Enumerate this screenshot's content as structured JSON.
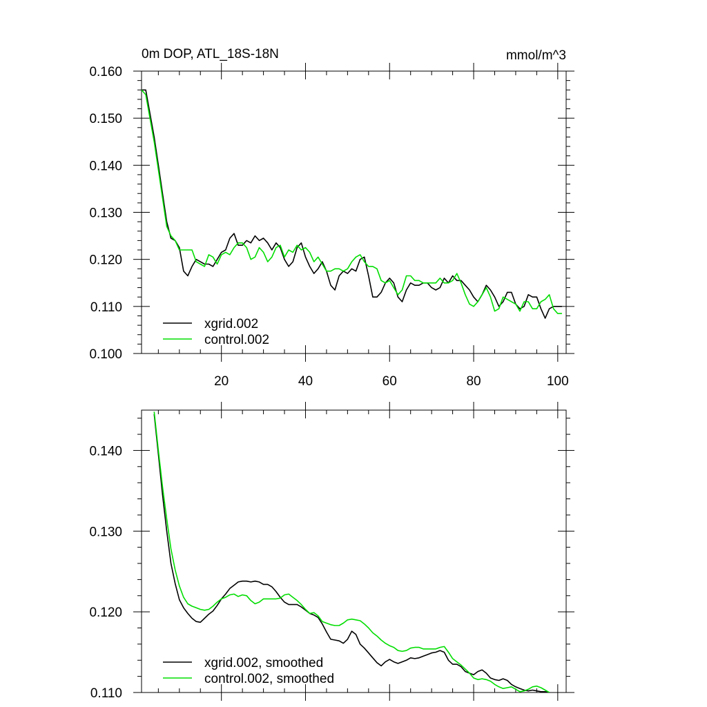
{
  "chart_data": [
    {
      "type": "line",
      "title": "0m DOP, ATL_18S-18N",
      "units": "mmol/m^3",
      "xlabel": "",
      "ylabel": "",
      "xlim": [
        1,
        102
      ],
      "ylim": [
        0.1,
        0.16
      ],
      "x_ticks": [
        "20",
        "40",
        "60",
        "80",
        "100"
      ],
      "y_ticks": [
        "0.100",
        "0.110",
        "0.120",
        "0.130",
        "0.140",
        "0.150",
        "0.160"
      ],
      "legend": {
        "position": "bottom-left",
        "entries": [
          "xgrid.002",
          "control.002"
        ]
      },
      "x": [
        1,
        2,
        3,
        4,
        5,
        6,
        7,
        8,
        9,
        10,
        11,
        12,
        13,
        14,
        15,
        16,
        17,
        18,
        19,
        20,
        21,
        22,
        23,
        24,
        25,
        26,
        27,
        28,
        29,
        30,
        31,
        32,
        33,
        34,
        35,
        36,
        37,
        38,
        39,
        40,
        41,
        42,
        43,
        44,
        45,
        46,
        47,
        48,
        49,
        50,
        51,
        52,
        53,
        54,
        55,
        56,
        57,
        58,
        59,
        60,
        61,
        62,
        63,
        64,
        65,
        66,
        67,
        68,
        69,
        70,
        71,
        72,
        73,
        74,
        75,
        76,
        77,
        78,
        79,
        80,
        81,
        82,
        83,
        84,
        85,
        86,
        87,
        88,
        89,
        90,
        91,
        92,
        93,
        94,
        95,
        96,
        97,
        98,
        99,
        100,
        101
      ],
      "series": [
        {
          "name": "xgrid.002",
          "color": "#000000",
          "values": [
            0.156,
            0.156,
            0.151,
            0.146,
            0.14,
            0.134,
            0.128,
            0.1245,
            0.124,
            0.1225,
            0.1175,
            0.1165,
            0.1185,
            0.12,
            0.1195,
            0.119,
            0.119,
            0.1185,
            0.12,
            0.1215,
            0.122,
            0.1245,
            0.1255,
            0.123,
            0.123,
            0.124,
            0.1235,
            0.125,
            0.124,
            0.1245,
            0.1235,
            0.122,
            0.1235,
            0.1225,
            0.12,
            0.1185,
            0.1195,
            0.1225,
            0.1235,
            0.1205,
            0.1185,
            0.117,
            0.118,
            0.1195,
            0.1175,
            0.1145,
            0.1135,
            0.1165,
            0.1175,
            0.117,
            0.118,
            0.1175,
            0.12,
            0.1205,
            0.1165,
            0.112,
            0.112,
            0.113,
            0.115,
            0.116,
            0.115,
            0.112,
            0.111,
            0.1135,
            0.115,
            0.1145,
            0.1145,
            0.115,
            0.115,
            0.114,
            0.1135,
            0.114,
            0.116,
            0.115,
            0.1165,
            0.1155,
            0.1155,
            0.1145,
            0.1135,
            0.112,
            0.111,
            0.1125,
            0.1145,
            0.1135,
            0.112,
            0.11,
            0.111,
            0.113,
            0.113,
            0.1105,
            0.1095,
            0.11,
            0.1125,
            0.112,
            0.112,
            0.1095,
            0.1075,
            0.1095,
            0.11,
            0.11,
            0.11
          ]
        },
        {
          "name": "control.002",
          "color": "#00dd00",
          "values": [
            0.156,
            0.155,
            0.15,
            0.145,
            0.139,
            0.133,
            0.127,
            0.125,
            0.124,
            0.122,
            0.122,
            0.122,
            0.122,
            0.1195,
            0.119,
            0.1185,
            0.121,
            0.1205,
            0.119,
            0.121,
            0.1215,
            0.121,
            0.1225,
            0.1235,
            0.1235,
            0.1225,
            0.12,
            0.1205,
            0.1225,
            0.1215,
            0.1195,
            0.1205,
            0.1225,
            0.123,
            0.1205,
            0.122,
            0.1215,
            0.123,
            0.122,
            0.1225,
            0.1215,
            0.1195,
            0.1205,
            0.119,
            0.1175,
            0.1175,
            0.118,
            0.118,
            0.1175,
            0.118,
            0.1195,
            0.1205,
            0.121,
            0.1195,
            0.1185,
            0.1185,
            0.118,
            0.1155,
            0.115,
            0.1155,
            0.114,
            0.1125,
            0.1135,
            0.1165,
            0.1165,
            0.1155,
            0.1155,
            0.115,
            0.115,
            0.115,
            0.115,
            0.116,
            0.115,
            0.115,
            0.1155,
            0.117,
            0.115,
            0.1125,
            0.1105,
            0.11,
            0.111,
            0.1125,
            0.114,
            0.112,
            0.109,
            0.1095,
            0.112,
            0.1115,
            0.111,
            0.1105,
            0.109,
            0.111,
            0.111,
            0.1095,
            0.1095,
            0.111,
            0.1115,
            0.1125,
            0.1095,
            0.1085,
            0.1085
          ]
        }
      ]
    },
    {
      "type": "line",
      "title": "",
      "xlabel": "",
      "ylabel": "",
      "xlim": [
        1,
        102
      ],
      "ylim": [
        0.11,
        0.145
      ],
      "x_ticks": [],
      "y_ticks": [
        "0.110",
        "0.120",
        "0.130",
        "0.140"
      ],
      "legend": {
        "position": "bottom-left",
        "entries": [
          "xgrid.002, smoothed",
          "control.002, smoothed"
        ]
      },
      "x": [
        4,
        5,
        6,
        7,
        8,
        9,
        10,
        11,
        12,
        13,
        14,
        15,
        16,
        17,
        18,
        19,
        20,
        21,
        22,
        23,
        24,
        25,
        26,
        27,
        28,
        29,
        30,
        31,
        32,
        33,
        34,
        35,
        36,
        37,
        38,
        39,
        40,
        41,
        42,
        43,
        44,
        45,
        46,
        47,
        48,
        49,
        50,
        51,
        52,
        53,
        54,
        55,
        56,
        57,
        58,
        59,
        60,
        61,
        62,
        63,
        64,
        65,
        66,
        67,
        68,
        69,
        70,
        71,
        72,
        73,
        74,
        75,
        76,
        77,
        78,
        79,
        80,
        81,
        82,
        83,
        84,
        85,
        86,
        87,
        88,
        89,
        90,
        91,
        92,
        93,
        94,
        95,
        96,
        97,
        98
      ],
      "series": [
        {
          "name": "xgrid.002, smoothed",
          "color": "#000000",
          "values": [
            0.1445,
            0.1395,
            0.1345,
            0.13,
            0.126,
            0.1235,
            0.1215,
            0.1205,
            0.1198,
            0.1192,
            0.1188,
            0.1187,
            0.1192,
            0.1197,
            0.1201,
            0.1208,
            0.1216,
            0.1222,
            0.1229,
            0.1233,
            0.1237,
            0.1238,
            0.1238,
            0.1237,
            0.1238,
            0.1237,
            0.1234,
            0.1234,
            0.1231,
            0.1225,
            0.1218,
            0.1212,
            0.1209,
            0.1209,
            0.1209,
            0.1206,
            0.1202,
            0.1198,
            0.1196,
            0.1193,
            0.1185,
            0.1175,
            0.1166,
            0.1165,
            0.1164,
            0.1161,
            0.1166,
            0.1176,
            0.1172,
            0.116,
            0.1155,
            0.1149,
            0.1143,
            0.1137,
            0.1133,
            0.1138,
            0.1141,
            0.1138,
            0.1136,
            0.1138,
            0.114,
            0.1143,
            0.1142,
            0.1143,
            0.1145,
            0.1147,
            0.1149,
            0.115,
            0.1152,
            0.115,
            0.114,
            0.1135,
            0.1135,
            0.1132,
            0.1126,
            0.1124,
            0.1122,
            0.1126,
            0.1128,
            0.1124,
            0.1118,
            0.1116,
            0.1115,
            0.1117,
            0.1115,
            0.111,
            0.1107,
            0.1105,
            0.1103,
            0.1102,
            0.1103,
            0.1102,
            0.1101,
            0.1101,
            0.11
          ]
        },
        {
          "name": "control.002, smoothed",
          "color": "#00dd00",
          "values": [
            0.1448,
            0.14,
            0.1355,
            0.1315,
            0.1278,
            0.1252,
            0.1232,
            0.1218,
            0.121,
            0.1207,
            0.1205,
            0.1203,
            0.1202,
            0.1203,
            0.1207,
            0.1212,
            0.1216,
            0.1218,
            0.1221,
            0.1222,
            0.1219,
            0.1221,
            0.122,
            0.1214,
            0.121,
            0.1212,
            0.1216,
            0.1216,
            0.1216,
            0.1216,
            0.1217,
            0.1221,
            0.1222,
            0.1218,
            0.1214,
            0.1209,
            0.1203,
            0.1198,
            0.1199,
            0.1195,
            0.1188,
            0.1186,
            0.1184,
            0.1183,
            0.1183,
            0.1186,
            0.119,
            0.1191,
            0.119,
            0.1189,
            0.1185,
            0.118,
            0.1174,
            0.117,
            0.1165,
            0.1161,
            0.1158,
            0.1156,
            0.1152,
            0.1151,
            0.1152,
            0.1155,
            0.1156,
            0.1156,
            0.1154,
            0.1154,
            0.1154,
            0.1154,
            0.1156,
            0.1157,
            0.115,
            0.1142,
            0.1138,
            0.1134,
            0.1129,
            0.1124,
            0.1118,
            0.1116,
            0.1117,
            0.1116,
            0.1114,
            0.111,
            0.1107,
            0.1105,
            0.1106,
            0.1107,
            0.1104,
            0.1101,
            0.1102,
            0.1104,
            0.1107,
            0.1108,
            0.1106,
            0.1103,
            0.11
          ]
        }
      ]
    }
  ]
}
